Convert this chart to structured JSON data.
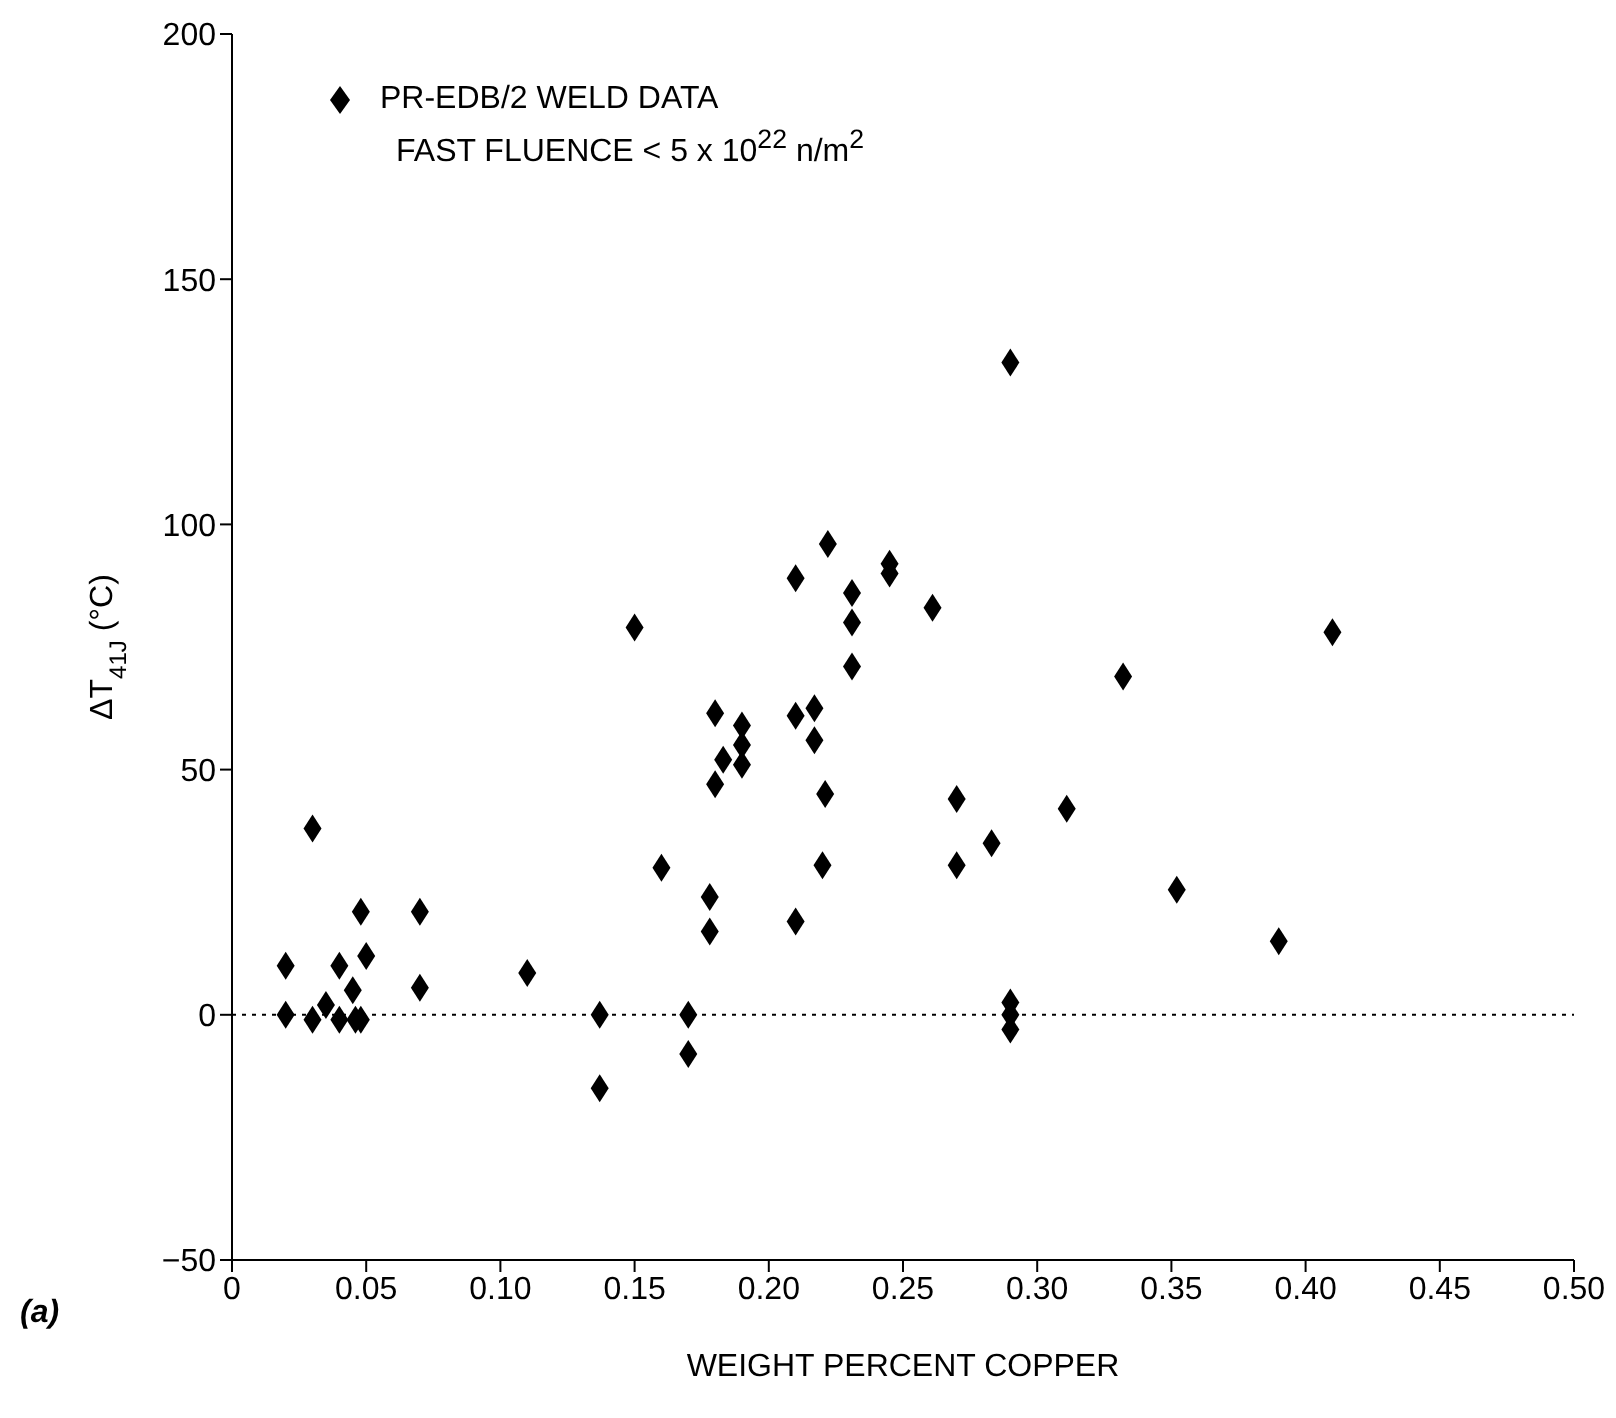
{
  "chart_data": {
    "type": "scatter",
    "xlabel": "WEIGHT PERCENT COPPER",
    "ylabel": "ΔT$_{41J}$ (°C)",
    "xlim": [
      0,
      0.5
    ],
    "xticks": [
      0,
      0.05,
      {
        "value": 0.1,
        "label": "0.10"
      },
      0.15,
      {
        "value": 0.2,
        "label": "0.20"
      },
      0.25,
      {
        "value": 0.3,
        "label": "0.30"
      },
      0.35,
      {
        "value": 0.4,
        "label": "0.40"
      },
      0.45,
      {
        "value": 0.5,
        "label": "0.50"
      }
    ],
    "ylim": [
      -50,
      200
    ],
    "yticks": [
      {
        "value": -50,
        "label": "−50"
      },
      0,
      50,
      100,
      150,
      200
    ],
    "marker": "diamond",
    "legend": "top left",
    "grid": false,
    "series": [
      {
        "name": "PR-EDB/2 WELD DATA",
        "color": "#000000",
        "x": [
          0.02,
          0.02,
          0.03,
          0.03,
          0.035,
          0.04,
          0.04,
          0.045,
          0.046,
          0.048,
          0.048,
          0.05,
          0.07,
          0.07,
          0.11,
          0.137,
          0.137,
          0.15,
          0.16,
          0.17,
          0.17,
          0.178,
          0.178,
          0.18,
          0.18,
          0.183,
          0.19,
          0.19,
          0.19,
          0.21,
          0.21,
          0.21,
          0.217,
          0.217,
          0.221,
          0.22,
          0.222,
          0.231,
          0.231,
          0.231,
          0.245,
          0.245,
          0.261,
          0.27,
          0.27,
          0.283,
          0.29,
          0.29,
          0.29,
          0.29,
          0.311,
          0.332,
          0.352,
          0.39,
          0.41
        ],
        "values": [
          10,
          0,
          38,
          -1,
          2,
          10,
          -1,
          5,
          -1,
          -1,
          21,
          12,
          21,
          5.5,
          8.5,
          0,
          -15,
          79,
          30,
          0,
          -8,
          24,
          17,
          47,
          61.5,
          52,
          59,
          55,
          51,
          61,
          19,
          89,
          62.5,
          56,
          45,
          30.5,
          96,
          86,
          80,
          71,
          92,
          90,
          83,
          44,
          30.5,
          35,
          2.5,
          0,
          -3,
          133,
          42,
          69,
          25.5,
          15,
          78
        ]
      }
    ],
    "ref_lines": [
      {
        "axis": "y",
        "value": 0,
        "line_style": "dotted",
        "color": "#000000"
      }
    ],
    "annotations": [
      "FAST FLUENCE < 5 x 10$^{22}$ n/m$^{2}$",
      "(a)"
    ]
  }
}
